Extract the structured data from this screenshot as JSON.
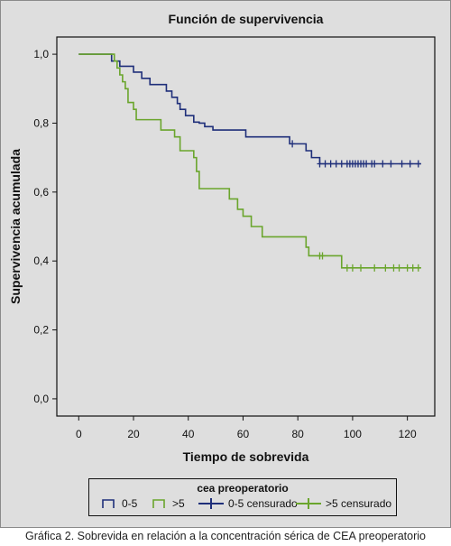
{
  "chart_data": {
    "type": "line",
    "subtype": "kaplan-meier step curve",
    "title": "Función de supervivencia",
    "xlabel": "Tiempo de sobrevida",
    "ylabel": "Supervivencia acumulada",
    "xlim": [
      -8,
      130
    ],
    "ylim": [
      -0.05,
      1.05
    ],
    "xticks": [
      0,
      20,
      40,
      60,
      80,
      100,
      120
    ],
    "yticks": [
      "0,0",
      "0,2",
      "0,4",
      "0,6",
      "0,8",
      "1,0"
    ],
    "ytick_values": [
      0,
      0.2,
      0.4,
      0.6,
      0.8,
      1.0
    ],
    "grid": false,
    "legend": {
      "title": "cea preoperatorio",
      "placement": "bottom",
      "entries": [
        {
          "label": "0-5",
          "marker": "step",
          "series": "0-5"
        },
        {
          "label": ">5",
          "marker": "step",
          "series": ">5"
        },
        {
          "label": "0-5 censurado",
          "marker": "cross",
          "series": "0-5"
        },
        {
          "label": ">5 censurado",
          "marker": "cross",
          "series": ">5"
        }
      ]
    },
    "series": [
      {
        "name": "0-5",
        "color": "#1f2f7a",
        "steps": [
          [
            0,
            1.0
          ],
          [
            12,
            0.98
          ],
          [
            15,
            0.965
          ],
          [
            20,
            0.948
          ],
          [
            23,
            0.93
          ],
          [
            26,
            0.912
          ],
          [
            32,
            0.893
          ],
          [
            34,
            0.875
          ],
          [
            36,
            0.857
          ],
          [
            37,
            0.84
          ],
          [
            39,
            0.822
          ],
          [
            42,
            0.803
          ],
          [
            44,
            0.8
          ],
          [
            46,
            0.79
          ],
          [
            49,
            0.78
          ],
          [
            61,
            0.76
          ],
          [
            77,
            0.74
          ],
          [
            83,
            0.72
          ],
          [
            85,
            0.7
          ],
          [
            88,
            0.682
          ],
          [
            125,
            0.682
          ]
        ],
        "censored": [
          [
            78,
            0.74
          ],
          [
            88,
            0.682
          ],
          [
            90,
            0.682
          ],
          [
            92,
            0.682
          ],
          [
            94,
            0.682
          ],
          [
            96,
            0.682
          ],
          [
            98,
            0.682
          ],
          [
            99,
            0.682
          ],
          [
            100,
            0.682
          ],
          [
            101,
            0.682
          ],
          [
            102,
            0.682
          ],
          [
            103,
            0.682
          ],
          [
            104,
            0.682
          ],
          [
            105,
            0.682
          ],
          [
            107,
            0.682
          ],
          [
            108,
            0.682
          ],
          [
            111,
            0.682
          ],
          [
            114,
            0.682
          ],
          [
            118,
            0.682
          ],
          [
            121,
            0.682
          ],
          [
            124,
            0.682
          ]
        ]
      },
      {
        "name": ">5",
        "color": "#6aa52c",
        "steps": [
          [
            0,
            1.0
          ],
          [
            13,
            0.98
          ],
          [
            14,
            0.96
          ],
          [
            15,
            0.94
          ],
          [
            16,
            0.92
          ],
          [
            17,
            0.9
          ],
          [
            18,
            0.86
          ],
          [
            20,
            0.84
          ],
          [
            21,
            0.81
          ],
          [
            23,
            0.81
          ],
          [
            30,
            0.78
          ],
          [
            35,
            0.76
          ],
          [
            37,
            0.72
          ],
          [
            42,
            0.7
          ],
          [
            43,
            0.66
          ],
          [
            44,
            0.61
          ],
          [
            51,
            0.61
          ],
          [
            55,
            0.58
          ],
          [
            58,
            0.55
          ],
          [
            60,
            0.53
          ],
          [
            63,
            0.5
          ],
          [
            67,
            0.47
          ],
          [
            81,
            0.47
          ],
          [
            83,
            0.44
          ],
          [
            84,
            0.415
          ],
          [
            95,
            0.415
          ],
          [
            96,
            0.38
          ],
          [
            125,
            0.38
          ]
        ],
        "censored": [
          [
            88,
            0.415
          ],
          [
            89,
            0.415
          ],
          [
            98,
            0.38
          ],
          [
            100,
            0.38
          ],
          [
            103,
            0.38
          ],
          [
            108,
            0.38
          ],
          [
            112,
            0.38
          ],
          [
            115,
            0.38
          ],
          [
            117,
            0.38
          ],
          [
            120,
            0.38
          ],
          [
            122,
            0.38
          ],
          [
            124,
            0.38
          ]
        ]
      }
    ]
  },
  "caption": "Gráfica 2. Sobrevida en relación a la concentración sérica de CEA preoperatorio"
}
